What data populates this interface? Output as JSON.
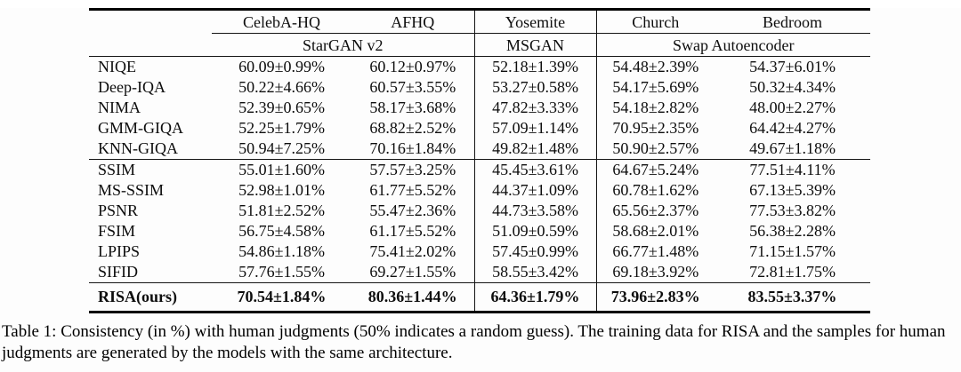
{
  "table": {
    "dataset_headers": [
      "CelebA-HQ",
      "AFHQ",
      "Yosemite",
      "Church",
      "Bedroom"
    ],
    "model_headers": [
      {
        "label": "StarGAN v2"
      },
      {
        "label": "MSGAN"
      },
      {
        "label": "Swap Autoencoder"
      }
    ],
    "rows": [
      {
        "label": "NIQE",
        "values": [
          "60.09±0.99%",
          "60.12±0.97%",
          "52.18±1.39%",
          "54.48±2.39%",
          "54.37±6.01%"
        ]
      },
      {
        "label": "Deep-IQA",
        "values": [
          "50.22±4.66%",
          "60.57±3.55%",
          "53.27±0.58%",
          "54.17±5.69%",
          "50.32±4.34%"
        ]
      },
      {
        "label": "NIMA",
        "values": [
          "52.39±0.65%",
          "58.17±3.68%",
          "47.82±3.33%",
          "54.18±2.82%",
          "48.00±2.27%"
        ]
      },
      {
        "label": "GMM-GIQA",
        "values": [
          "52.25±1.79%",
          "68.82±2.52%",
          "57.09±1.14%",
          "70.95±2.35%",
          "64.42±4.27%"
        ]
      },
      {
        "label": "KNN-GIQA",
        "values": [
          "50.94±7.25%",
          "70.16±1.84%",
          "49.82±1.48%",
          "50.90±2.57%",
          "49.67±1.18%"
        ]
      },
      {
        "label": "SSIM",
        "values": [
          "55.01±1.60%",
          "57.57±3.25%",
          "45.45±3.61%",
          "64.67±5.24%",
          "77.51±4.11%"
        ]
      },
      {
        "label": "MS-SSIM",
        "values": [
          "52.98±1.01%",
          "61.77±5.52%",
          "44.37±1.09%",
          "60.78±1.62%",
          "67.13±5.39%"
        ]
      },
      {
        "label": "PSNR",
        "values": [
          "51.81±2.52%",
          "55.47±2.36%",
          "44.73±3.58%",
          "65.56±2.37%",
          "77.53±3.82%"
        ]
      },
      {
        "label": "FSIM",
        "values": [
          "56.75±4.58%",
          "61.17±5.52%",
          "51.09±0.59%",
          "58.68±2.01%",
          "56.38±2.28%"
        ]
      },
      {
        "label": "LPIPS",
        "values": [
          "54.86±1.18%",
          "75.41±2.02%",
          "57.45±0.99%",
          "66.77±1.48%",
          "71.15±1.57%"
        ]
      },
      {
        "label": "SIFID",
        "values": [
          "57.76±1.55%",
          "69.27±1.55%",
          "58.55±3.42%",
          "69.18±3.92%",
          "72.81±1.75%"
        ]
      },
      {
        "label": "RISA(ours)",
        "values": [
          "70.54±1.84%",
          "80.36±1.44%",
          "64.36±1.79%",
          "73.96±2.83%",
          "83.55±3.37%"
        ],
        "bold": true
      }
    ],
    "group_separator_after": [
      "KNN-GIQA",
      "SIFID"
    ]
  },
  "caption": "Table 1: Consistency (in %) with human judgments (50% indicates a random guess). The training data for RISA and the samples for human judgments are generated by the models with the same architecture."
}
